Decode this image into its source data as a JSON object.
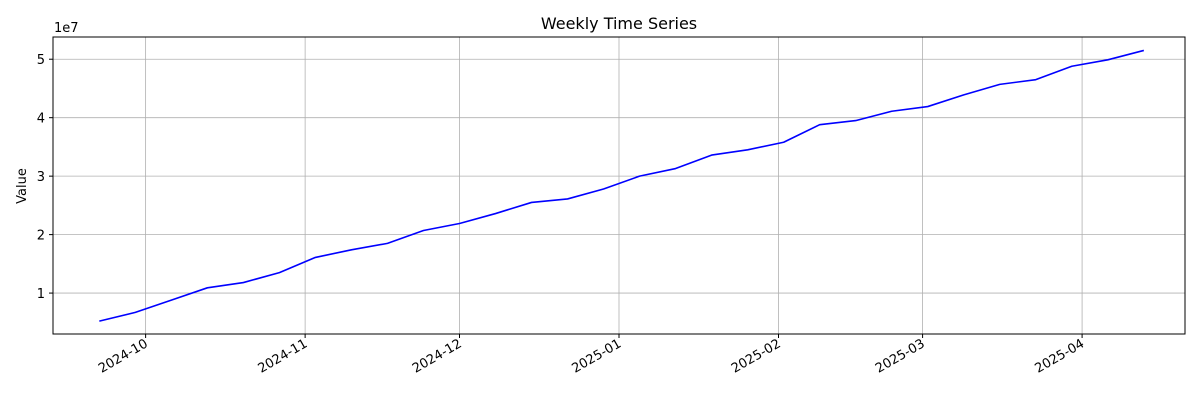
{
  "chart_data": {
    "type": "line",
    "title": "Weekly Time Series",
    "xlabel": "",
    "ylabel": "Value",
    "y_multiplier": "1e7",
    "grid": true,
    "x_ticks": [
      "2024-10-01",
      "2024-11-01",
      "2024-12-01",
      "2025-01-01",
      "2025-02-01",
      "2025-03-01",
      "2025-04-01"
    ],
    "x_tick_labels": [
      "2024-10",
      "2024-11",
      "2024-12",
      "2025-01",
      "2025-02",
      "2025-03",
      "2025-04"
    ],
    "y_ticks": [
      10000000,
      20000000,
      30000000,
      40000000,
      50000000
    ],
    "y_tick_labels": [
      "1",
      "2",
      "3",
      "4",
      "5"
    ],
    "xlim": [
      "2024-09-13",
      "2025-04-21"
    ],
    "ylim": [
      3000000,
      53800000
    ],
    "series": [
      {
        "color": "#0000ff",
        "x": [
          "2024-09-22",
          "2024-09-29",
          "2024-10-06",
          "2024-10-13",
          "2024-10-20",
          "2024-10-27",
          "2024-11-03",
          "2024-11-10",
          "2024-11-17",
          "2024-11-24",
          "2024-12-01",
          "2024-12-08",
          "2024-12-15",
          "2024-12-22",
          "2024-12-29",
          "2025-01-05",
          "2025-01-12",
          "2025-01-19",
          "2025-01-26",
          "2025-02-02",
          "2025-02-09",
          "2025-02-16",
          "2025-02-23",
          "2025-03-02",
          "2025-03-09",
          "2025-03-16",
          "2025-03-23",
          "2025-03-30",
          "2025-04-06",
          "2025-04-13"
        ],
        "values": [
          5200000,
          6700000,
          8800000,
          10900000,
          11800000,
          13500000,
          16100000,
          17400000,
          18500000,
          20700000,
          21900000,
          23600000,
          25500000,
          26100000,
          27800000,
          30000000,
          31300000,
          33600000,
          34500000,
          35800000,
          38800000,
          39500000,
          41100000,
          41900000,
          43900000,
          45700000,
          46500000,
          48800000,
          49900000,
          51500000
        ]
      }
    ]
  }
}
